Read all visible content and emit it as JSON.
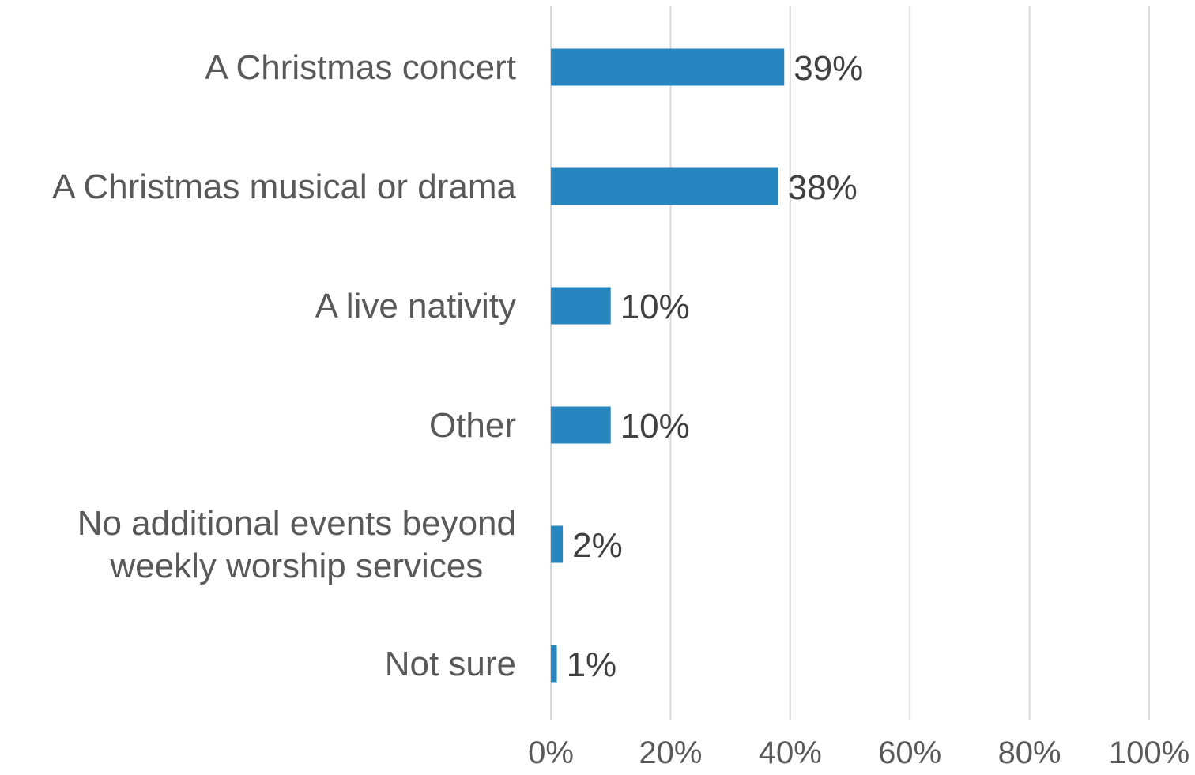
{
  "chart_data": {
    "type": "bar",
    "orientation": "horizontal",
    "categories": [
      [
        "A Christmas concert"
      ],
      [
        "A Christmas musical or drama"
      ],
      [
        "A live nativity"
      ],
      [
        "Other"
      ],
      [
        "No additional events beyond",
        "weekly worship services"
      ],
      [
        "Not sure"
      ]
    ],
    "values": [
      39,
      38,
      10,
      10,
      2,
      1
    ],
    "data_labels": [
      "39%",
      "38%",
      "10%",
      "10%",
      "2%",
      "1%"
    ],
    "x_ticks": [
      "0%",
      "20%",
      "40%",
      "60%",
      "80%",
      "100%"
    ],
    "xlim": [
      0,
      100
    ],
    "title": "",
    "xlabel": "",
    "ylabel": "",
    "grid": true,
    "legend": "none",
    "bar_color": "#2785C0",
    "grid_color": "#D9D9D9",
    "label_color": "#595959"
  }
}
